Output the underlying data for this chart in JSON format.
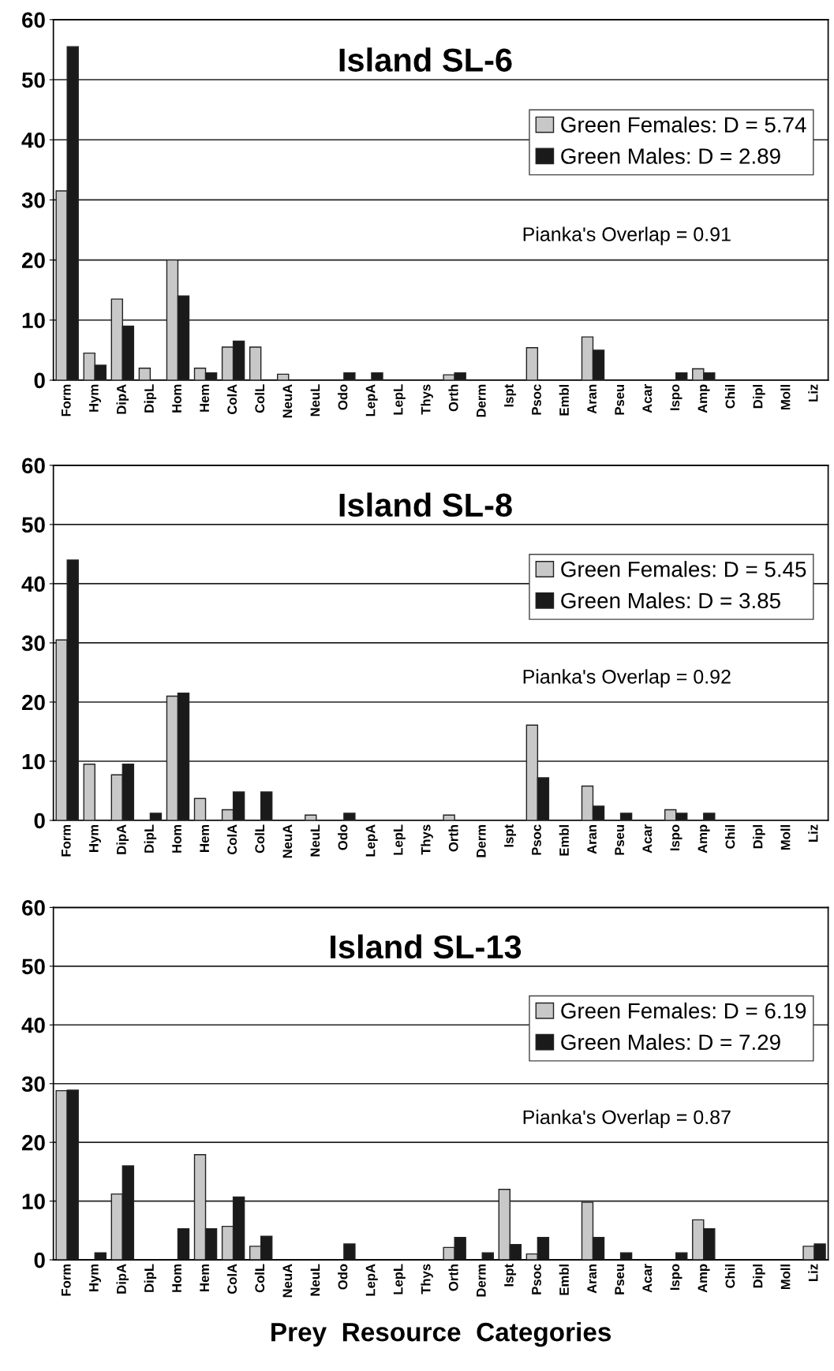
{
  "chart_data": [
    {
      "type": "bar",
      "title": "Island SL-6",
      "categories": [
        "Form",
        "Hym",
        "DipA",
        "DipL",
        "Hom",
        "Hem",
        "ColA",
        "ColL",
        "NeuA",
        "NeuL",
        "Odo",
        "LepA",
        "LepL",
        "Thys",
        "Orth",
        "Derm",
        "Ispt",
        "Psoc",
        "Embl",
        "Aran",
        "Pseu",
        "Acar",
        "Ispo",
        "Amp",
        "Chil",
        "Dipl",
        "Moll",
        "Liz"
      ],
      "series": [
        {
          "name": "Green Females: D = 5.74",
          "color": "#c8c8c8",
          "values": [
            31.5,
            4.5,
            13.5,
            2,
            20,
            2,
            5.5,
            5.5,
            1,
            0,
            0,
            0,
            0,
            0,
            0.9,
            0,
            0,
            5.4,
            0,
            7.2,
            0,
            0,
            0,
            1.9,
            0,
            0,
            0,
            0
          ]
        },
        {
          "name": "Green Males: D = 2.89",
          "color": "#1a1a1a",
          "values": [
            55.5,
            2.5,
            9,
            0,
            14,
            1.2,
            6.5,
            0,
            0,
            0,
            1.2,
            1.2,
            0,
            0,
            1.2,
            0,
            0,
            0,
            0,
            5,
            0,
            0,
            1.2,
            1.2,
            0,
            0,
            0,
            0
          ]
        }
      ],
      "ylim": [
        0,
        60
      ],
      "yticks": [
        0,
        10,
        20,
        30,
        40,
        50,
        60
      ],
      "grid": "y",
      "legend": "top right",
      "annotations": [
        "Pianka's Overlap = 0.91"
      ]
    },
    {
      "type": "bar",
      "title": "Island SL-8",
      "categories": [
        "Form",
        "Hym",
        "DipA",
        "DipL",
        "Hom",
        "Hem",
        "ColA",
        "ColL",
        "NeuA",
        "NeuL",
        "Odo",
        "LepA",
        "LepL",
        "Thys",
        "Orth",
        "Derm",
        "Ispt",
        "Psoc",
        "Embl",
        "Aran",
        "Pseu",
        "Acar",
        "Ispo",
        "Amp",
        "Chil",
        "Dipl",
        "Moll",
        "Liz"
      ],
      "series": [
        {
          "name": "Green Females: D = 5.45",
          "color": "#c8c8c8",
          "values": [
            30.5,
            9.5,
            7.7,
            0,
            21,
            3.7,
            1.8,
            0,
            0,
            0.9,
            0,
            0,
            0,
            0,
            0.9,
            0,
            0,
            16.1,
            0,
            5.8,
            0,
            0,
            1.8,
            0,
            0,
            0,
            0,
            0
          ]
        },
        {
          "name": "Green Males: D = 3.85",
          "color": "#1a1a1a",
          "values": [
            44,
            0,
            9.5,
            1.2,
            21.5,
            0,
            4.8,
            4.8,
            0,
            0,
            1.2,
            0,
            0,
            0,
            0,
            0,
            0,
            7.2,
            0,
            2.4,
            1.2,
            0,
            1.2,
            1.2,
            0,
            0,
            0,
            0
          ]
        }
      ],
      "ylim": [
        0,
        60
      ],
      "yticks": [
        0,
        10,
        20,
        30,
        40,
        50,
        60
      ],
      "grid": "y",
      "legend": "top right",
      "annotations": [
        "Pianka's Overlap = 0.92"
      ]
    },
    {
      "type": "bar",
      "title": "Island SL-13",
      "xlabel": "Prey  Resource  Categories",
      "categories": [
        "Form",
        "Hym",
        "DipA",
        "DipL",
        "Hom",
        "Hem",
        "ColA",
        "ColL",
        "NeuA",
        "NeuL",
        "Odo",
        "LepA",
        "LepL",
        "Thys",
        "Orth",
        "Derm",
        "Ispt",
        "Psoc",
        "Embl",
        "Aran",
        "Pseu",
        "Acar",
        "Ispo",
        "Amp",
        "Chil",
        "Dipl",
        "Moll",
        "Liz"
      ],
      "series": [
        {
          "name": "Green Females: D = 6.19",
          "color": "#c8c8c8",
          "values": [
            28.8,
            0,
            11.2,
            0,
            0,
            17.9,
            5.7,
            2.3,
            0,
            0,
            0,
            0,
            0,
            0,
            2.1,
            0,
            12,
            1,
            0,
            9.8,
            0,
            0,
            0,
            6.8,
            0,
            0,
            0,
            2.3
          ]
        },
        {
          "name": "Green Males: D = 7.29",
          "color": "#1a1a1a",
          "values": [
            28.9,
            1.2,
            16,
            0,
            5.3,
            5.3,
            10.7,
            4,
            0,
            0,
            2.7,
            0,
            0,
            0,
            3.8,
            1.2,
            2.6,
            3.8,
            0,
            3.8,
            1.2,
            0,
            1.2,
            5.3,
            0,
            0,
            0,
            2.7
          ]
        }
      ],
      "ylim": [
        0,
        60
      ],
      "yticks": [
        0,
        10,
        20,
        30,
        40,
        50,
        60
      ],
      "grid": "y",
      "legend": "top right",
      "annotations": [
        "Pianka's Overlap = 0.87"
      ]
    }
  ]
}
